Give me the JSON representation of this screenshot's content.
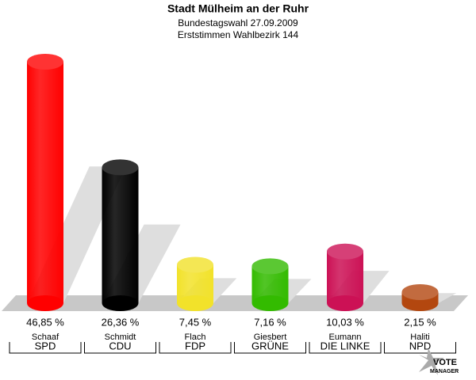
{
  "chart_data": {
    "type": "cylinder-bar",
    "title": "Stadt Mülheim an der Ruhr",
    "subtitle": [
      "Bundestagswahl 27.09.2009",
      "Erststimmen Wahlbezirk 144"
    ],
    "categories": [
      "SPD",
      "CDU",
      "FDP",
      "GRÜNE",
      "DIE LINKE",
      "NPD"
    ],
    "candidates": [
      "Schaaf",
      "Schmidt",
      "Flach",
      "Giesbert",
      "Eumann",
      "Haliti"
    ],
    "values": [
      46.85,
      26.36,
      7.45,
      7.16,
      10.03,
      2.15
    ],
    "value_labels": [
      "46,85 %",
      "26,36 %",
      "7,45 %",
      "7,16 %",
      "10,03 %",
      "2,15 %"
    ],
    "colors": [
      "#ff0000",
      "#000000",
      "#f2e22a",
      "#33bb00",
      "#cc1155",
      "#b3470f"
    ],
    "logo": [
      "VOTE",
      "MANAGER"
    ]
  }
}
